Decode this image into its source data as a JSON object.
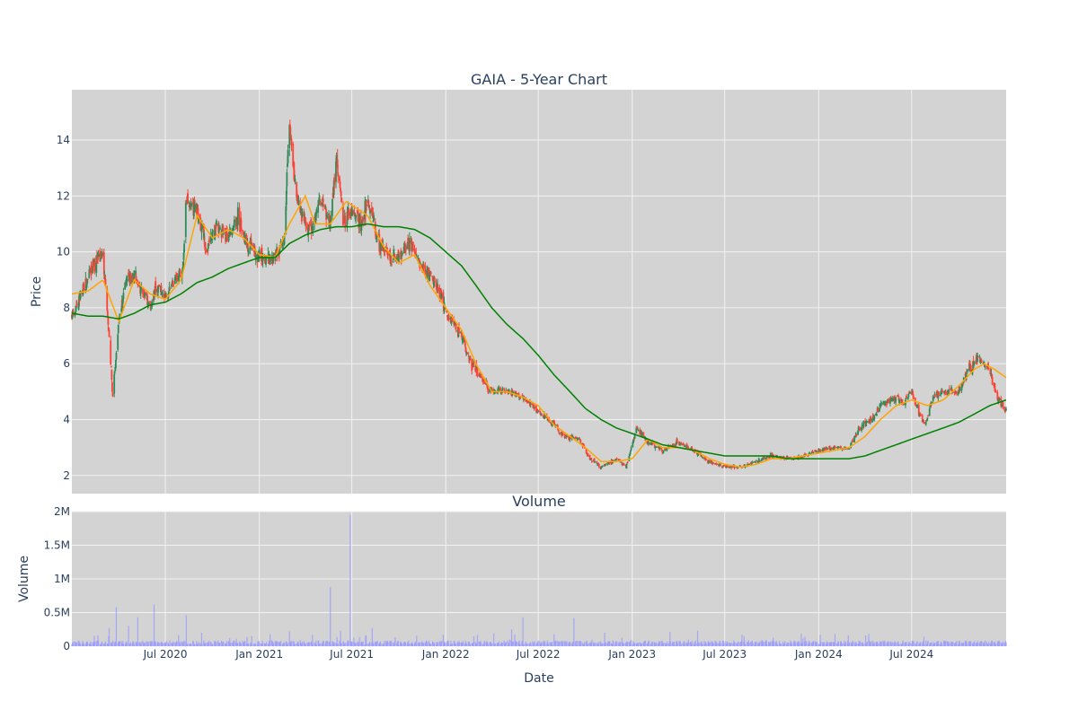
{
  "chart_data": [
    {
      "type": "candlestick",
      "title": "GAIA - 5-Year Chart",
      "ylabel": "Price",
      "xlim": [
        "2019-12-31",
        "2025-01-02"
      ],
      "ylim": [
        1.35,
        15.8
      ],
      "yticks": [
        2,
        4,
        6,
        8,
        10,
        12,
        14
      ],
      "grid": true,
      "legend": "none",
      "colors": {
        "up": "#2e8b57",
        "down": "#ff4136",
        "short_ma": "#ffa500",
        "long_ma": "#008000",
        "plot_bg": "#d3d3d3",
        "grid": "#f2f2f2",
        "text": "#2a3f5f"
      },
      "close_anchors": [
        [
          "2020-01-02",
          7.8
        ],
        [
          "2020-01-20",
          8.5
        ],
        [
          "2020-02-10",
          9.5
        ],
        [
          "2020-03-01",
          10.0
        ],
        [
          "2020-03-12",
          7.2
        ],
        [
          "2020-03-20",
          4.8
        ],
        [
          "2020-04-01",
          7.5
        ],
        [
          "2020-04-15",
          9.0
        ],
        [
          "2020-05-01",
          9.2
        ],
        [
          "2020-05-20",
          8.5
        ],
        [
          "2020-06-01",
          8.0
        ],
        [
          "2020-06-15",
          8.8
        ],
        [
          "2020-07-01",
          8.3
        ],
        [
          "2020-07-20",
          9.0
        ],
        [
          "2020-08-05",
          9.5
        ],
        [
          "2020-08-10",
          11.8
        ],
        [
          "2020-09-01",
          11.5
        ],
        [
          "2020-09-20",
          10.0
        ],
        [
          "2020-10-10",
          11.0
        ],
        [
          "2020-11-01",
          10.5
        ],
        [
          "2020-11-20",
          11.3
        ],
        [
          "2020-12-10",
          10.2
        ],
        [
          "2021-01-01",
          9.8
        ],
        [
          "2021-02-01",
          9.8
        ],
        [
          "2021-02-20",
          10.5
        ],
        [
          "2021-02-28",
          14.8
        ],
        [
          "2021-03-15",
          12.0
        ],
        [
          "2021-04-01",
          11.0
        ],
        [
          "2021-04-15",
          10.8
        ],
        [
          "2021-05-01",
          12.0
        ],
        [
          "2021-05-20",
          11.0
        ],
        [
          "2021-06-01",
          13.5
        ],
        [
          "2021-06-15",
          11.0
        ],
        [
          "2021-07-01",
          11.5
        ],
        [
          "2021-07-20",
          11.0
        ],
        [
          "2021-08-01",
          12.0
        ],
        [
          "2021-08-20",
          10.5
        ],
        [
          "2021-09-10",
          9.8
        ],
        [
          "2021-10-01",
          9.8
        ],
        [
          "2021-10-25",
          10.4
        ],
        [
          "2021-11-10",
          9.5
        ],
        [
          "2021-12-01",
          9.2
        ],
        [
          "2021-12-20",
          8.5
        ],
        [
          "2022-01-10",
          7.5
        ],
        [
          "2022-02-01",
          7.0
        ],
        [
          "2022-02-20",
          6.0
        ],
        [
          "2022-03-10",
          5.5
        ],
        [
          "2022-04-01",
          5.0
        ],
        [
          "2022-05-01",
          5.0
        ],
        [
          "2022-06-01",
          4.8
        ],
        [
          "2022-07-01",
          4.3
        ],
        [
          "2022-08-01",
          3.8
        ],
        [
          "2022-08-20",
          3.4
        ],
        [
          "2022-09-20",
          3.3
        ],
        [
          "2022-10-10",
          2.6
        ],
        [
          "2022-11-01",
          2.3
        ],
        [
          "2022-12-01",
          2.6
        ],
        [
          "2022-12-20",
          2.3
        ],
        [
          "2023-01-10",
          3.7
        ],
        [
          "2023-02-01",
          3.2
        ],
        [
          "2023-03-01",
          2.9
        ],
        [
          "2023-04-01",
          3.2
        ],
        [
          "2023-05-01",
          2.9
        ],
        [
          "2023-06-01",
          2.5
        ],
        [
          "2023-07-01",
          2.3
        ],
        [
          "2023-08-01",
          2.3
        ],
        [
          "2023-09-01",
          2.5
        ],
        [
          "2023-10-01",
          2.7
        ],
        [
          "2023-11-01",
          2.6
        ],
        [
          "2023-12-01",
          2.7
        ],
        [
          "2024-01-01",
          2.9
        ],
        [
          "2024-02-01",
          3.0
        ],
        [
          "2024-03-01",
          3.0
        ],
        [
          "2024-03-20",
          3.7
        ],
        [
          "2024-04-15",
          4.0
        ],
        [
          "2024-05-01",
          4.5
        ],
        [
          "2024-06-01",
          4.8
        ],
        [
          "2024-06-15",
          4.6
        ],
        [
          "2024-07-01",
          5.0
        ],
        [
          "2024-07-20",
          4.0
        ],
        [
          "2024-07-28",
          3.8
        ],
        [
          "2024-08-10",
          4.8
        ],
        [
          "2024-09-01",
          5.0
        ],
        [
          "2024-10-01",
          5.0
        ],
        [
          "2024-10-20",
          5.8
        ],
        [
          "2024-11-10",
          6.2
        ],
        [
          "2024-12-01",
          5.8
        ],
        [
          "2024-12-15",
          4.8
        ],
        [
          "2025-01-02",
          4.3
        ]
      ],
      "short_ma_anchors": [
        [
          "2020-01-02",
          8.5
        ],
        [
          "2020-02-01",
          8.6
        ],
        [
          "2020-03-01",
          9.0
        ],
        [
          "2020-04-01",
          7.5
        ],
        [
          "2020-05-01",
          9.0
        ],
        [
          "2020-06-01",
          8.5
        ],
        [
          "2020-07-01",
          8.3
        ],
        [
          "2020-08-01",
          9.0
        ],
        [
          "2020-09-01",
          11.3
        ],
        [
          "2020-10-01",
          10.5
        ],
        [
          "2020-11-01",
          10.8
        ],
        [
          "2020-12-01",
          10.5
        ],
        [
          "2021-01-01",
          9.9
        ],
        [
          "2021-02-01",
          9.8
        ],
        [
          "2021-03-01",
          11.0
        ],
        [
          "2021-04-01",
          12.0
        ],
        [
          "2021-04-20",
          11.0
        ],
        [
          "2021-05-20",
          11.0
        ],
        [
          "2021-06-20",
          11.8
        ],
        [
          "2021-08-01",
          11.3
        ],
        [
          "2021-09-01",
          10.2
        ],
        [
          "2021-10-01",
          9.6
        ],
        [
          "2021-11-01",
          9.9
        ],
        [
          "2021-12-01",
          8.8
        ],
        [
          "2022-01-01",
          8.0
        ],
        [
          "2022-02-01",
          7.2
        ],
        [
          "2022-03-01",
          6.0
        ],
        [
          "2022-04-01",
          5.0
        ],
        [
          "2022-05-01",
          5.0
        ],
        [
          "2022-06-01",
          4.8
        ],
        [
          "2022-07-01",
          4.5
        ],
        [
          "2022-08-01",
          3.8
        ],
        [
          "2022-09-01",
          3.4
        ],
        [
          "2022-10-01",
          3.0
        ],
        [
          "2022-11-01",
          2.5
        ],
        [
          "2022-12-01",
          2.5
        ],
        [
          "2023-01-01",
          2.6
        ],
        [
          "2023-02-01",
          3.3
        ],
        [
          "2023-03-01",
          3.0
        ],
        [
          "2023-04-01",
          3.0
        ],
        [
          "2023-05-01",
          2.9
        ],
        [
          "2023-06-01",
          2.6
        ],
        [
          "2023-07-01",
          2.4
        ],
        [
          "2023-08-01",
          2.3
        ],
        [
          "2023-09-01",
          2.4
        ],
        [
          "2023-10-01",
          2.6
        ],
        [
          "2023-11-01",
          2.6
        ],
        [
          "2023-12-01",
          2.7
        ],
        [
          "2024-01-01",
          2.8
        ],
        [
          "2024-02-01",
          2.9
        ],
        [
          "2024-03-01",
          3.0
        ],
        [
          "2024-04-01",
          3.4
        ],
        [
          "2024-05-01",
          4.0
        ],
        [
          "2024-06-01",
          4.5
        ],
        [
          "2024-07-01",
          4.7
        ],
        [
          "2024-08-01",
          4.5
        ],
        [
          "2024-09-01",
          4.7
        ],
        [
          "2024-10-01",
          5.2
        ],
        [
          "2024-11-01",
          5.8
        ],
        [
          "2024-11-20",
          6.0
        ],
        [
          "2024-12-10",
          5.8
        ],
        [
          "2025-01-02",
          5.5
        ]
      ],
      "long_ma_anchors": [
        [
          "2020-01-02",
          7.8
        ],
        [
          "2020-02-01",
          7.7
        ],
        [
          "2020-03-01",
          7.7
        ],
        [
          "2020-04-01",
          7.6
        ],
        [
          "2020-05-01",
          7.8
        ],
        [
          "2020-06-01",
          8.1
        ],
        [
          "2020-07-01",
          8.2
        ],
        [
          "2020-08-01",
          8.5
        ],
        [
          "2020-09-01",
          8.9
        ],
        [
          "2020-10-01",
          9.1
        ],
        [
          "2020-11-01",
          9.4
        ],
        [
          "2020-12-01",
          9.6
        ],
        [
          "2021-01-01",
          9.8
        ],
        [
          "2021-02-01",
          9.8
        ],
        [
          "2021-03-01",
          10.3
        ],
        [
          "2021-04-01",
          10.6
        ],
        [
          "2021-05-01",
          10.8
        ],
        [
          "2021-06-01",
          10.9
        ],
        [
          "2021-07-01",
          10.9
        ],
        [
          "2021-08-01",
          11.0
        ],
        [
          "2021-09-01",
          10.9
        ],
        [
          "2021-10-01",
          10.9
        ],
        [
          "2021-11-01",
          10.8
        ],
        [
          "2021-12-01",
          10.5
        ],
        [
          "2022-01-01",
          10.0
        ],
        [
          "2022-02-01",
          9.5
        ],
        [
          "2022-03-01",
          8.8
        ],
        [
          "2022-04-01",
          8.0
        ],
        [
          "2022-05-01",
          7.4
        ],
        [
          "2022-06-01",
          6.9
        ],
        [
          "2022-07-01",
          6.3
        ],
        [
          "2022-08-01",
          5.6
        ],
        [
          "2022-09-01",
          5.0
        ],
        [
          "2022-10-01",
          4.4
        ],
        [
          "2022-11-01",
          4.0
        ],
        [
          "2022-12-01",
          3.7
        ],
        [
          "2023-01-01",
          3.5
        ],
        [
          "2023-02-01",
          3.3
        ],
        [
          "2023-03-01",
          3.1
        ],
        [
          "2023-04-01",
          3.0
        ],
        [
          "2023-05-01",
          2.9
        ],
        [
          "2023-06-01",
          2.8
        ],
        [
          "2023-07-01",
          2.7
        ],
        [
          "2023-08-01",
          2.7
        ],
        [
          "2023-09-01",
          2.7
        ],
        [
          "2023-10-01",
          2.7
        ],
        [
          "2023-11-01",
          2.6
        ],
        [
          "2023-12-01",
          2.6
        ],
        [
          "2024-01-01",
          2.6
        ],
        [
          "2024-02-01",
          2.6
        ],
        [
          "2024-03-01",
          2.6
        ],
        [
          "2024-04-01",
          2.7
        ],
        [
          "2024-05-01",
          2.9
        ],
        [
          "2024-06-01",
          3.1
        ],
        [
          "2024-07-01",
          3.3
        ],
        [
          "2024-08-01",
          3.5
        ],
        [
          "2024-09-01",
          3.7
        ],
        [
          "2024-10-01",
          3.9
        ],
        [
          "2024-11-01",
          4.2
        ],
        [
          "2024-12-01",
          4.5
        ],
        [
          "2025-01-02",
          4.7
        ]
      ]
    },
    {
      "type": "bar",
      "title": "Volume",
      "xlabel": "Date",
      "ylabel": "Volume",
      "ylim": [
        0,
        2000000
      ],
      "yticks": [
        [
          0,
          "0"
        ],
        [
          500000,
          "0.5M"
        ],
        [
          1000000,
          "1M"
        ],
        [
          1500000,
          "1.5M"
        ],
        [
          2000000,
          "2M"
        ]
      ],
      "xticks": [
        [
          "2020-07-01",
          "Jul 2020"
        ],
        [
          "2021-01-01",
          "Jan 2021"
        ],
        [
          "2021-07-01",
          "Jul 2021"
        ],
        [
          "2022-01-01",
          "Jan 2022"
        ],
        [
          "2022-07-01",
          "Jul 2022"
        ],
        [
          "2023-01-01",
          "Jan 2023"
        ],
        [
          "2023-07-01",
          "Jul 2023"
        ],
        [
          "2024-01-01",
          "Jan 2024"
        ],
        [
          "2024-07-01",
          "Jul 2024"
        ]
      ],
      "grid": true,
      "bar_color": "#9b9bff",
      "baseline": 60000,
      "spikes": [
        [
          "2020-03-13",
          270000
        ],
        [
          "2020-03-27",
          580000
        ],
        [
          "2020-04-20",
          300000
        ],
        [
          "2020-05-08",
          430000
        ],
        [
          "2020-06-09",
          620000
        ],
        [
          "2020-08-11",
          460000
        ],
        [
          "2020-09-10",
          200000
        ],
        [
          "2020-12-17",
          150000
        ],
        [
          "2021-01-22",
          180000
        ],
        [
          "2021-03-01",
          220000
        ],
        [
          "2021-04-15",
          170000
        ],
        [
          "2021-05-20",
          880000
        ],
        [
          "2021-06-09",
          230000
        ],
        [
          "2021-06-28",
          1950000
        ],
        [
          "2021-08-10",
          270000
        ],
        [
          "2022-02-25",
          150000
        ],
        [
          "2022-05-10",
          250000
        ],
        [
          "2022-06-01",
          430000
        ],
        [
          "2022-08-01",
          180000
        ],
        [
          "2022-09-09",
          420000
        ],
        [
          "2022-11-08",
          200000
        ],
        [
          "2023-03-16",
          210000
        ],
        [
          "2023-05-09",
          230000
        ],
        [
          "2023-08-08",
          150000
        ],
        [
          "2023-12-05",
          140000
        ],
        [
          "2024-04-02",
          160000
        ]
      ]
    }
  ]
}
